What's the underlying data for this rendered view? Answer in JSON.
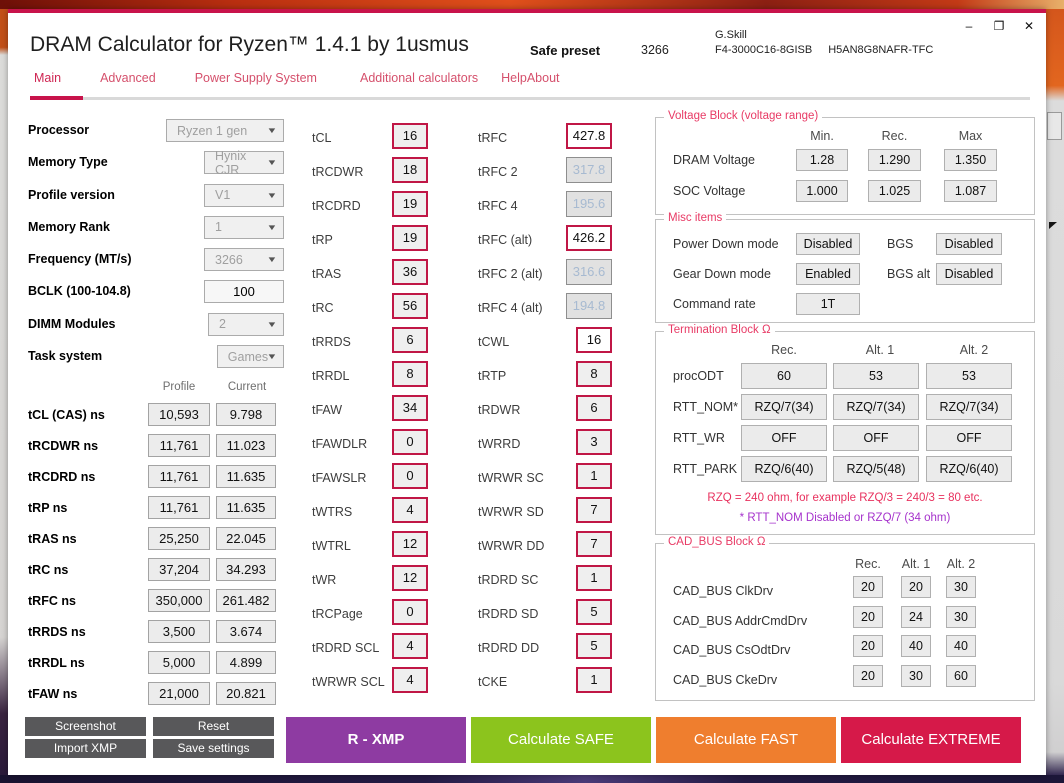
{
  "window": {
    "title": "DRAM Calculator for Ryzen™ 1.4.1 by 1usmus",
    "preset_label": "Safe preset",
    "preset_frequency": "3266",
    "module_brand": "G.Skill",
    "module_model": "F4-3000C16-8GISB",
    "chip_model": "H5AN8G8NAFR-TFC",
    "controls": {
      "minimize": "–",
      "maximize": "❐",
      "close": "✕"
    }
  },
  "tabs": [
    {
      "label": "Main",
      "state": "active"
    },
    {
      "label": "Advanced"
    },
    {
      "label": "Power Supply System"
    },
    {
      "label": "Additional calculators"
    },
    {
      "label": "Help"
    },
    {
      "label": "About"
    }
  ],
  "left_panel": {
    "fields": [
      {
        "label": "Processor",
        "value": "Ryzen 1 gen"
      },
      {
        "label": "Memory Type",
        "value": "Hynix CJR"
      },
      {
        "label": "Profile version",
        "value": "V1"
      },
      {
        "label": "Memory Rank",
        "value": "1"
      },
      {
        "label": "Frequency (MT/s)",
        "value": "3266"
      },
      {
        "label": "BCLK (100-104.8)",
        "value": "100",
        "state": "inputbox"
      },
      {
        "label": "DIMM Modules",
        "value": "2"
      },
      {
        "label": "Task system",
        "value": "Games"
      }
    ],
    "ns_table": {
      "headers": [
        "Profile",
        "Current"
      ],
      "rows": [
        {
          "label": "tCL (CAS) ns",
          "profile": "10,593",
          "current": "9.798"
        },
        {
          "label": "tRCDWR ns",
          "profile": "11,761",
          "current": "11.023"
        },
        {
          "label": "tRCDRD ns",
          "profile": "11,761",
          "current": "11.635"
        },
        {
          "label": "tRP ns",
          "profile": "11,761",
          "current": "11.635"
        },
        {
          "label": "tRAS ns",
          "profile": "25,250",
          "current": "22.045"
        },
        {
          "label": "tRC ns",
          "profile": "37,204",
          "current": "34.293"
        },
        {
          "label": "tRFC ns",
          "profile": "350,000",
          "current": "261.482"
        },
        {
          "label": "tRRDS ns",
          "profile": "3,500",
          "current": "3.674"
        },
        {
          "label": "tRRDL ns",
          "profile": "5,000",
          "current": "4.899"
        },
        {
          "label": "tFAW ns",
          "profile": "21,000",
          "current": "20.821"
        }
      ]
    }
  },
  "timings_col1": [
    {
      "label": "tCL",
      "value": "16"
    },
    {
      "label": "tRCDWR",
      "value": "18"
    },
    {
      "label": "tRCDRD",
      "value": "19"
    },
    {
      "label": "tRP",
      "value": "19"
    },
    {
      "label": "tRAS",
      "value": "36"
    },
    {
      "label": "tRC",
      "value": "56"
    },
    {
      "label": "tRRDS",
      "value": "6"
    },
    {
      "label": "tRRDL",
      "value": "8"
    },
    {
      "label": "tFAW",
      "value": "34"
    },
    {
      "label": "tFAWDLR",
      "value": "0"
    },
    {
      "label": "tFAWSLR",
      "value": "0"
    },
    {
      "label": "tWTRS",
      "value": "4"
    },
    {
      "label": "tWTRL",
      "value": "12"
    },
    {
      "label": "tWR",
      "value": "12"
    },
    {
      "label": "tRCPage",
      "value": "0"
    },
    {
      "label": "tRDRD SCL",
      "value": "4"
    },
    {
      "label": "tWRWR SCL",
      "value": "4"
    }
  ],
  "timings_col2": [
    {
      "label": "tRFC",
      "value": "427.8",
      "state": "wide white"
    },
    {
      "label": "tRFC 2",
      "value": "317.8",
      "state": "wide disabled"
    },
    {
      "label": "tRFC 4",
      "value": "195.6",
      "state": "wide disabled"
    },
    {
      "label": "tRFC (alt)",
      "value": "426.2",
      "state": "wide white"
    },
    {
      "label": "tRFC 2 (alt)",
      "value": "316.6",
      "state": "wide disabled"
    },
    {
      "label": "tRFC 4 (alt)",
      "value": "194.8",
      "state": "wide disabled"
    },
    {
      "label": "tCWL",
      "value": "16",
      "state": "white"
    },
    {
      "label": "tRTP",
      "value": "8"
    },
    {
      "label": "tRDWR",
      "value": "6"
    },
    {
      "label": "tWRRD",
      "value": "3"
    },
    {
      "label": "tWRWR SC",
      "value": "1"
    },
    {
      "label": "tWRWR SD",
      "value": "7"
    },
    {
      "label": "tWRWR DD",
      "value": "7"
    },
    {
      "label": "tRDRD SC",
      "value": "1"
    },
    {
      "label": "tRDRD SD",
      "value": "5"
    },
    {
      "label": "tRDRD DD",
      "value": "5"
    },
    {
      "label": "tCKE",
      "value": "1"
    }
  ],
  "voltage_block": {
    "legend": "Voltage Block (voltage range)",
    "headers": [
      "Min.",
      "Rec.",
      "Max"
    ],
    "rows": [
      {
        "label": "DRAM Voltage",
        "min": "1.28",
        "rec": "1.290",
        "max": "1.350"
      },
      {
        "label": "SOC Voltage",
        "min": "1.000",
        "rec": "1.025",
        "max": "1.087"
      }
    ]
  },
  "misc_items": {
    "legend": "Misc items",
    "rows": [
      {
        "label": "Power Down mode",
        "value": "Disabled",
        "label2": "BGS",
        "value2": "Disabled"
      },
      {
        "label": "Gear Down mode",
        "value": "Enabled",
        "label2": "BGS alt",
        "value2": "Disabled"
      },
      {
        "label": "Command rate",
        "value": "1T"
      }
    ]
  },
  "termination_block": {
    "legend": "Termination Block Ω",
    "headers": [
      "Rec.",
      "Alt. 1",
      "Alt. 2"
    ],
    "rows": [
      {
        "label": "procODT",
        "rec": "60",
        "alt1": "53",
        "alt2": "53"
      },
      {
        "label": "RTT_NOM*",
        "rec": "RZQ/7(34)",
        "alt1": "RZQ/7(34)",
        "alt2": "RZQ/7(34)"
      },
      {
        "label": "RTT_WR",
        "rec": "OFF",
        "alt1": "OFF",
        "alt2": "OFF"
      },
      {
        "label": "RTT_PARK",
        "rec": "RZQ/6(40)",
        "alt1": "RZQ/5(48)",
        "alt2": "RZQ/6(40)"
      }
    ],
    "note1": "RZQ = 240 ohm, for example RZQ/3 = 240/3 = 80 etc.",
    "note2": "* RTT_NOM Disabled or RZQ/7 (34 ohm)"
  },
  "cad_bus_block": {
    "legend": "CAD_BUS Block Ω",
    "headers": [
      "Rec.",
      "Alt. 1",
      "Alt. 2"
    ],
    "rows": [
      {
        "label": "CAD_BUS ClkDrv",
        "rec": "20",
        "alt1": "20",
        "alt2": "30"
      },
      {
        "label": "CAD_BUS AddrCmdDrv",
        "rec": "20",
        "alt1": "24",
        "alt2": "30"
      },
      {
        "label": "CAD_BUS CsOdtDrv",
        "rec": "20",
        "alt1": "40",
        "alt2": "40"
      },
      {
        "label": "CAD_BUS CkeDrv",
        "rec": "20",
        "alt1": "30",
        "alt2": "60"
      }
    ]
  },
  "action_buttons": {
    "screenshot": "Screenshot",
    "reset": "Reset",
    "import_xmp": "Import XMP",
    "save_settings": "Save settings",
    "r_xmp": "R - XMP",
    "calc_safe": "Calculate SAFE",
    "calc_fast": "Calculate FAST",
    "calc_extreme": "Calculate EXTREME"
  },
  "colors": {
    "accent_crimson": "#c8134b",
    "timing_box_border": "#c01746",
    "tab_text": "#d5506c",
    "legend_text": "#e83a65",
    "note_purple": "#a633cc",
    "button_dark": "#58585a",
    "button_purple": "#8e3ba2",
    "button_green": "#8cc41d",
    "button_orange": "#ef7e2e",
    "button_crimson": "#d61949",
    "disabled_text": "#a7bad1"
  }
}
